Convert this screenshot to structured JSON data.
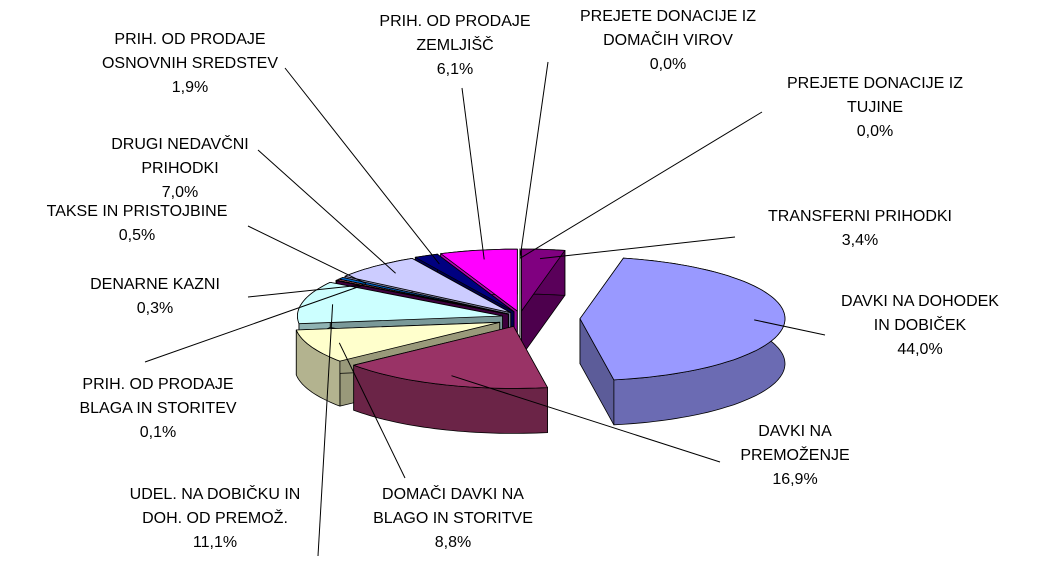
{
  "chart_data": {
    "type": "pie",
    "categories": [
      "TRANSFERNI PRIHODKI",
      "DAVKI NA DOHODEK IN DOBIČEK",
      "DAVKI NA PREMOŽENJE",
      "DOMAČI DAVKI NA BLAGO IN STORITVE",
      "UDEL. NA DOBIČKU IN DOH. OD PREMOŽ.",
      "PRIH. OD PRODAJE BLAGA IN STORITEV",
      "DENARNE KAZNI",
      "TAKSE IN PRISTOJBINE",
      "DRUGI NEDAVČNI PRIHODKI",
      "PRIH. OD PRODAJE OSNOVNIH SREDSTEV",
      "PRIH. OD PRODAJE ZEMLJIŠČ",
      "PREJETE DONACIJE IZ DOMAČIH VIROV",
      "PREJETE DONACIJE IZ TUJINE"
    ],
    "values": [
      3.4,
      44.0,
      16.9,
      8.8,
      11.1,
      0.1,
      0.3,
      0.5,
      7.0,
      1.9,
      6.1,
      0.0,
      0.0
    ],
    "value_labels": [
      "3,4%",
      "44,0%",
      "16,9%",
      "8,8%",
      "11,1%",
      "0,1%",
      "0,3%",
      "0,5%",
      "7,0%",
      "1,9%",
      "6,1%",
      "0,0%",
      "0,0%"
    ],
    "colors": [
      "#800080",
      "#9999ff",
      "#993366",
      "#ffffcc",
      "#ccffff",
      "#660066",
      "#ff8080",
      "#0066cc",
      "#ccccff",
      "#000080",
      "#ff00ff",
      "#999933",
      "#33cccc"
    ]
  }
}
